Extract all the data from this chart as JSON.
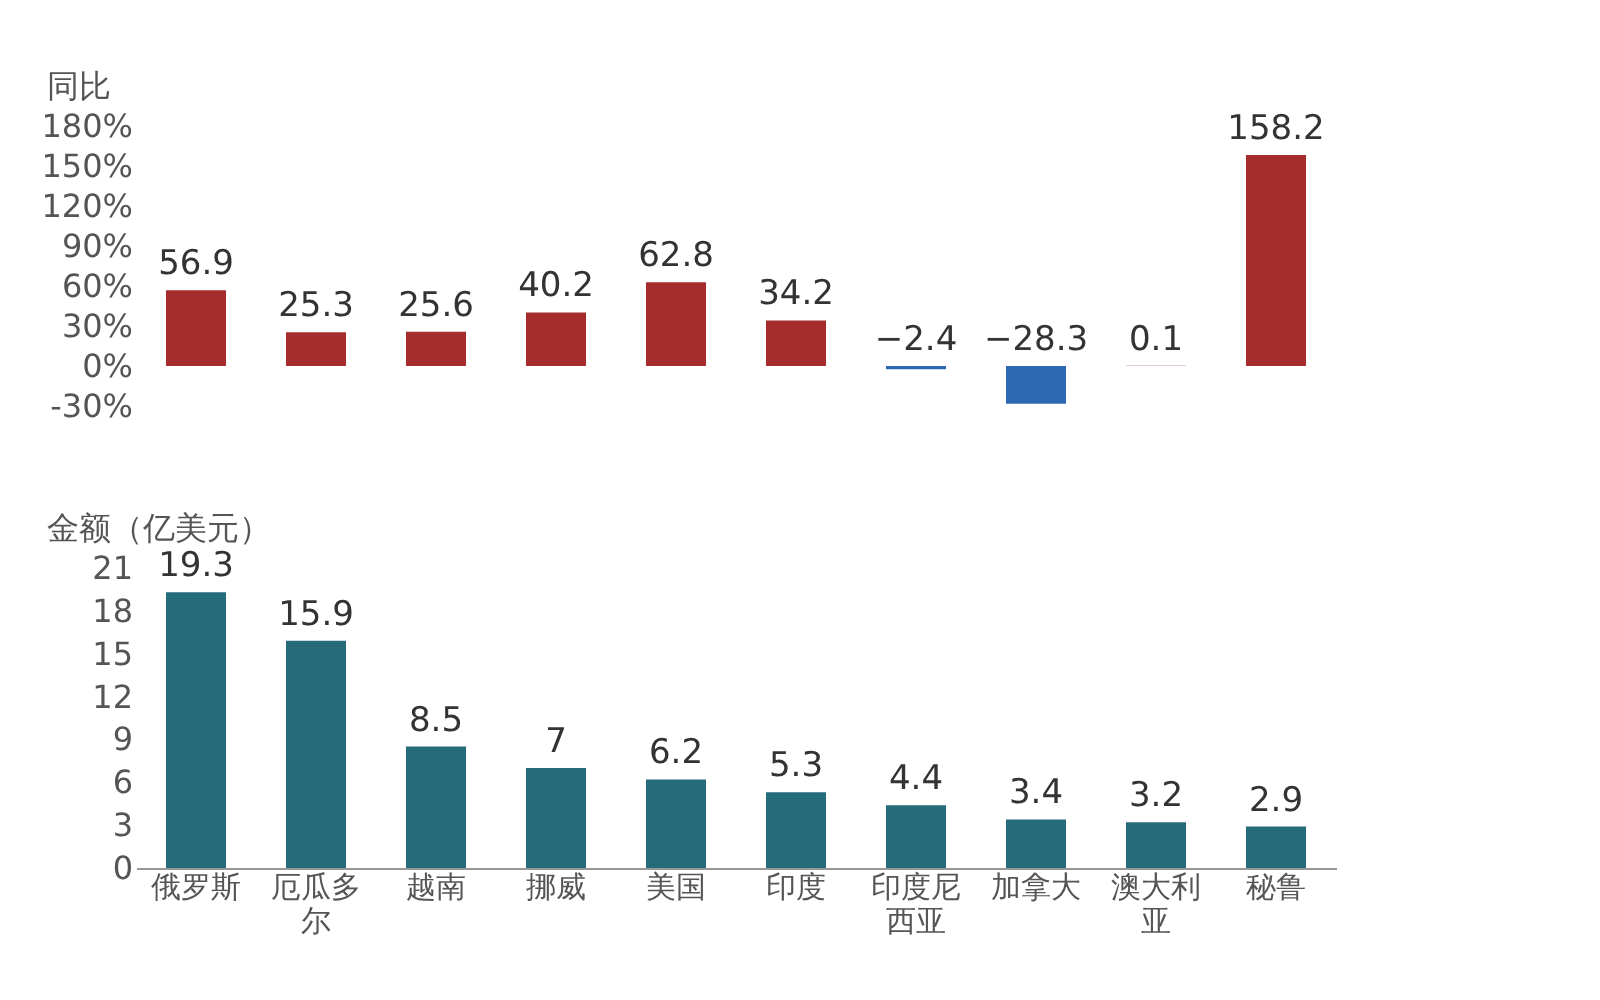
{
  "chart_data": [
    {
      "type": "bar",
      "ylabel": "同比",
      "categories": [
        "俄罗斯",
        "厄瓜多尔",
        "越南",
        "挪威",
        "美国",
        "印度",
        "印度尼西亚",
        "加拿大",
        "澳大利亚",
        "秘鲁"
      ],
      "values": [
        56.9,
        25.3,
        25.6,
        40.2,
        62.8,
        34.2,
        -2.4,
        -28.3,
        0.1,
        158.2
      ],
      "colors": [
        "#a52d2d",
        "#a52d2d",
        "#a52d2d",
        "#a52d2d",
        "#a52d2d",
        "#a52d2d",
        "#2e68b2",
        "#2e68b2",
        "#a52d2d",
        "#a52d2d"
      ],
      "ylim": [
        -30,
        180
      ],
      "yticks": [
        {
          "value": -30,
          "label": "-30%"
        },
        {
          "value": 0,
          "label": "0%"
        },
        {
          "value": 30,
          "label": "30%"
        },
        {
          "value": 60,
          "label": "60%"
        },
        {
          "value": 90,
          "label": "90%"
        },
        {
          "value": 120,
          "label": "120%"
        },
        {
          "value": 150,
          "label": "150%"
        },
        {
          "value": 180,
          "label": "180%"
        }
      ],
      "data_labels": true,
      "grid": false,
      "tick_labels": "y"
    },
    {
      "type": "bar",
      "ylabel": "金额（亿美元）",
      "categories": [
        "俄罗斯",
        "厄瓜多尔",
        "越南",
        "挪威",
        "美国",
        "印度",
        "印度尼西亚",
        "加拿大",
        "澳大利亚",
        "秘鲁"
      ],
      "values": [
        19.3,
        15.9,
        8.5,
        7,
        6.2,
        5.3,
        4.4,
        3.4,
        3.2,
        2.9
      ],
      "color": "#256b7a",
      "ylim": [
        0,
        21
      ],
      "yticks": [
        0,
        3,
        6,
        9,
        12,
        15,
        18,
        21
      ],
      "data_labels": true,
      "grid": false
    }
  ]
}
